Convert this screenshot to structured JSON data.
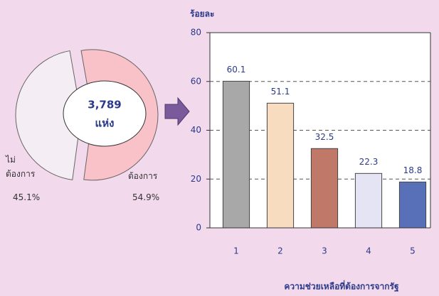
{
  "chart_data": [
    {
      "type": "pie",
      "labels": [
        "ไม่ ต้องการ",
        "ต้องการ"
      ],
      "values": [
        45.1,
        54.9
      ],
      "value_labels": [
        "45.1%",
        "54.9%"
      ],
      "colors": [
        "#f4eef4",
        "#f8c2c8"
      ],
      "center_text": [
        "3,789",
        "แห่ง"
      ]
    },
    {
      "type": "bar",
      "ylabel": "ร้อยละ",
      "xlabel": "ความช่วยเหลือที่ต้องการจากรัฐ",
      "categories": [
        "1",
        "2",
        "3",
        "4",
        "5"
      ],
      "values": [
        60.1,
        51.1,
        32.5,
        22.3,
        18.8
      ],
      "colors": [
        "#a8a8a8",
        "#f8dcc0",
        "#c07868",
        "#e4e4f4",
        "#5870b8"
      ],
      "ylim": [
        0,
        80
      ],
      "yticks": [
        0,
        20,
        40,
        60,
        80
      ],
      "grid": true
    }
  ]
}
